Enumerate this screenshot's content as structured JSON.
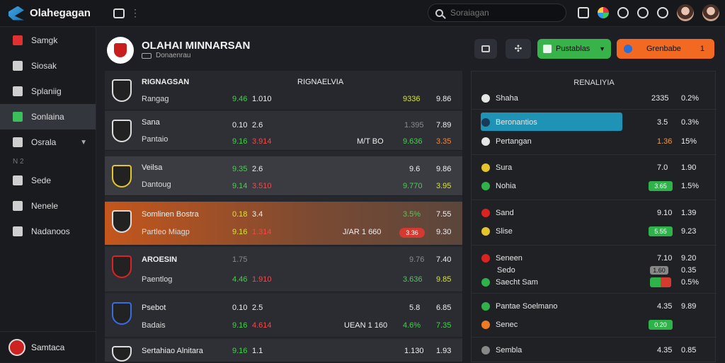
{
  "app": {
    "title": "Olahegagan"
  },
  "search": {
    "placeholder": "Soraiagan"
  },
  "sidebar": {
    "items": [
      {
        "label": "Samgk"
      },
      {
        "label": "Siosak"
      },
      {
        "label": "Splaniig"
      },
      {
        "label": "Sonlaina"
      },
      {
        "label": "Osrala"
      },
      {
        "label": "Sede"
      },
      {
        "label": "Nenele"
      },
      {
        "label": "Nadanoos"
      }
    ],
    "sub": "Ν 2",
    "footer": "Samtaca"
  },
  "header": {
    "title": "OLAHAI MINNARSAN",
    "subtitle": "Donaenrau"
  },
  "buttons": {
    "green_label": "Pustablas",
    "orange_label": "Grenbabe",
    "orange_count": "1"
  },
  "table": {
    "head": {
      "name": "RIGNAGSAN",
      "c1": "RIGNAELVIA"
    },
    "rows": [
      {
        "t1": "",
        "t2": "Rangag",
        "a1": "",
        "a2": "9.46",
        "b1": "",
        "b2": "1.010",
        "m": "",
        "c1": "",
        "c2": "9336",
        "d1": "",
        "d2": "9.86"
      },
      {
        "t1": "Sana",
        "t2": "Pantaio",
        "a1": "0.10",
        "a2": "9.16",
        "b1": "2.6",
        "b2": "3.914",
        "m": "M/T BO",
        "c1": "1.395",
        "c2": "9.636",
        "d1": "7.89",
        "d2": "3.35"
      },
      {
        "t1": "Veilsa",
        "t2": "Dantoug",
        "a1": "9.35",
        "a2": "9.14",
        "b1": "2.6",
        "b2": "3.510",
        "m": "",
        "c1": "9.6",
        "c2": "9.770",
        "d1": "9.86",
        "d2": "3.95"
      },
      {
        "t1": "Somlinen Bostra",
        "t2": "Partleo Miagp",
        "a1": "0.18",
        "a2": "9.16",
        "b1": "3.4",
        "b2": "1.314",
        "m": "J/AR 1 660",
        "c1": "3.5%",
        "c2": "",
        "d1": "7.55",
        "d2": "9.30"
      },
      {
        "t1": "AROESIN",
        "t2": "Paentlog",
        "a1": "1.75",
        "a2": "4.46",
        "b1": "",
        "b2": "1.910",
        "m": "",
        "c1": "9.76",
        "c2": "3.636",
        "d1": "7.40",
        "d2": "9.85"
      },
      {
        "t1": "Psebot",
        "t2": "Badais",
        "a1": "0.10",
        "a2": "9.16",
        "b1": "2.5",
        "b2": "4.614",
        "m": "UEAN 1 160",
        "c1": "5.8",
        "c2": "4.6%",
        "d1": "6.85",
        "d2": "7.35"
      },
      {
        "t1": "Sertahiao Alnitara",
        "t2": "",
        "a1": "9.16",
        "a2": "",
        "b1": "1.1",
        "b2": "",
        "m": "",
        "c1": "1.130",
        "c2": "",
        "d1": "1.93",
        "d2": ""
      }
    ],
    "pill": "3.36"
  },
  "panel": {
    "title": "RENALIYIA",
    "groups": [
      {
        "l1": "Shaha",
        "v1a": "2335",
        "v1b": "0.2%",
        "l2": "",
        "v2a": "",
        "v2b": ""
      },
      {
        "l1": "Beronantios",
        "v1a": "3.5",
        "v1b": "0.3%",
        "l2": "Pertangan",
        "v2a": "1.36",
        "v2b": "15%"
      },
      {
        "l1": "Sura",
        "v1a": "7.0",
        "v1b": "1.90",
        "l2": "Nohia",
        "v2a": "3.65",
        "v2b": "1.5%"
      },
      {
        "l1": "Sand",
        "v1a": "9.10",
        "v1b": "1.39",
        "l2": "Slise",
        "v2a": "5.55",
        "v2b": "9.23"
      },
      {
        "l1": "Seneen",
        "v1a": "7.10",
        "v1b": "9.20",
        "l2": "Sedo",
        "v2a": "1.60",
        "v2b": "0.35",
        "l3": "Saecht Sam",
        "v3a": "",
        "v3b": "0.5%"
      },
      {
        "l1": "Pantae Soelmano",
        "v1a": "4.35",
        "v1b": "9.89",
        "l2": "Senec",
        "v2a": "0.20",
        "v2b": ""
      },
      {
        "l1": "Sembla",
        "v1a": "4.35",
        "v1b": "0.85",
        "l2": "",
        "v2a": "",
        "v2b": ""
      }
    ]
  },
  "colors": {
    "accent_green": "#37b34a",
    "accent_orange": "#f26a22",
    "highlight": "#1e93b6"
  }
}
